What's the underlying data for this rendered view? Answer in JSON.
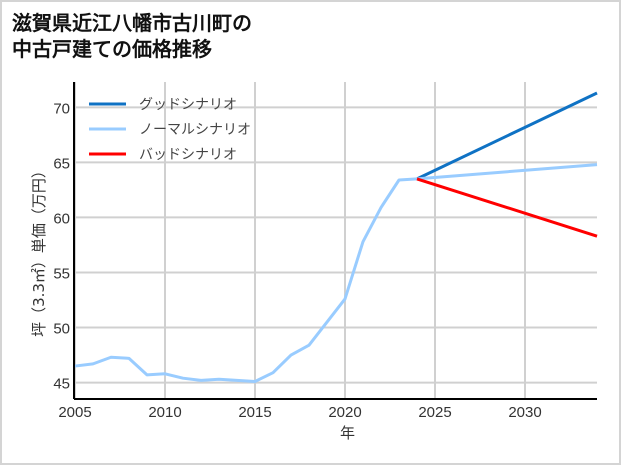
{
  "chart_data": {
    "type": "line",
    "title": "滋賀県近江八幡市古川町の\n中古戸建ての価格推移",
    "xlabel": "年",
    "ylabel": "坪（3.3㎡）単価（万円）",
    "xlim": [
      2005,
      2034
    ],
    "ylim": [
      43.6,
      72.3
    ],
    "xticks": [
      2005,
      2010,
      2015,
      2020,
      2025,
      2030
    ],
    "yticks": [
      45,
      50,
      55,
      60,
      65,
      70
    ],
    "grid": true,
    "legend_position": "upper left",
    "series": [
      {
        "name": "グッドシナリオ",
        "color": "#0f72c4",
        "x": [
          2024,
          2034
        ],
        "values": [
          63.5,
          71.3
        ]
      },
      {
        "name": "ノーマルシナリオ",
        "color": "#99ccff",
        "x": [
          2005,
          2006,
          2007,
          2008,
          2009,
          2010,
          2011,
          2012,
          2013,
          2014,
          2015,
          2016,
          2017,
          2018,
          2019,
          2020,
          2021,
          2022,
          2023,
          2024,
          2034
        ],
        "values": [
          46.5,
          46.7,
          47.3,
          47.2,
          45.7,
          45.8,
          45.4,
          45.2,
          45.3,
          45.2,
          45.1,
          45.9,
          47.5,
          48.4,
          50.5,
          52.6,
          57.8,
          60.9,
          63.4,
          63.5,
          64.8
        ]
      },
      {
        "name": "バッドシナリオ",
        "color": "#ff0000",
        "x": [
          2024,
          2034
        ],
        "values": [
          63.5,
          58.3
        ]
      }
    ]
  }
}
